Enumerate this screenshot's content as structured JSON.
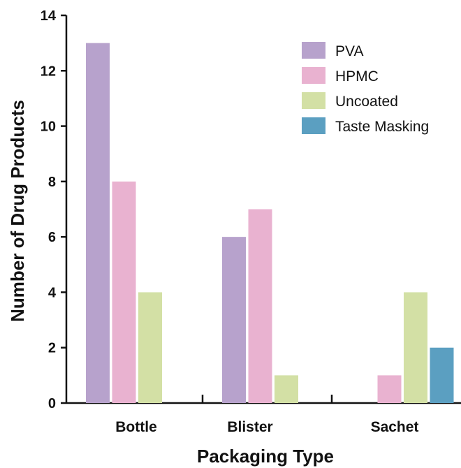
{
  "chart_data": {
    "type": "bar",
    "categories": [
      "Bottle",
      "Blister",
      "Sachet"
    ],
    "series": [
      {
        "name": "PVA",
        "color": "#b7a2cc",
        "values": [
          13,
          6,
          0
        ]
      },
      {
        "name": "HPMC",
        "color": "#e9b2d0",
        "values": [
          8,
          7,
          1
        ]
      },
      {
        "name": "Uncoated",
        "color": "#d3e0a5",
        "values": [
          4,
          1,
          4
        ]
      },
      {
        "name": "Taste Masking",
        "color": "#5b9fc1",
        "values": [
          0,
          0,
          2
        ]
      }
    ],
    "xlabel": "Packaging Type",
    "ylabel": "Number of Drug Products",
    "ylim": [
      0,
      14
    ],
    "yticks": [
      0,
      2,
      4,
      6,
      8,
      10,
      12,
      14
    ],
    "grid": false,
    "legend_position": "top-right"
  }
}
